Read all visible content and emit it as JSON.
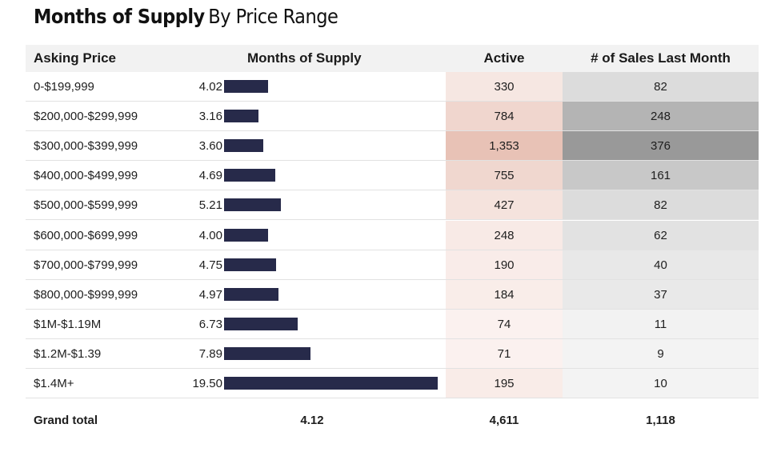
{
  "title": {
    "bold": "Months of Supply",
    "light": "By Price Range"
  },
  "headers": {
    "price": "Asking Price",
    "mos": "Months of Supply",
    "active": "Active",
    "sales": "# of Sales Last Month"
  },
  "colors": {
    "bar": "#272a4a",
    "active_heat_low": "#fcf5f3",
    "active_heat_high": "#e8c2b6",
    "sales_heat_low": "#f8f8f8",
    "sales_heat_high": "#999999"
  },
  "chart_data": {
    "type": "table",
    "columns": [
      "Asking Price",
      "Months of Supply",
      "Active",
      "# of Sales Last Month"
    ],
    "rows": [
      {
        "price": "0-$199,999",
        "mos": 4.02,
        "mos_label": "4.02",
        "active": 330,
        "active_label": "330",
        "sales": 82,
        "sales_label": "82"
      },
      {
        "price": "$200,000-$299,999",
        "mos": 3.16,
        "mos_label": "3.16",
        "active": 784,
        "active_label": "784",
        "sales": 248,
        "sales_label": "248"
      },
      {
        "price": "$300,000-$399,999",
        "mos": 3.6,
        "mos_label": "3.60",
        "active": 1353,
        "active_label": "1,353",
        "sales": 376,
        "sales_label": "376"
      },
      {
        "price": "$400,000-$499,999",
        "mos": 4.69,
        "mos_label": "4.69",
        "active": 755,
        "active_label": "755",
        "sales": 161,
        "sales_label": "161"
      },
      {
        "price": "$500,000-$599,999",
        "mos": 5.21,
        "mos_label": "5.21",
        "active": 427,
        "active_label": "427",
        "sales": 82,
        "sales_label": "82"
      },
      {
        "price": "$600,000-$699,999",
        "mos": 4.0,
        "mos_label": "4.00",
        "active": 248,
        "active_label": "248",
        "sales": 62,
        "sales_label": "62"
      },
      {
        "price": "$700,000-$799,999",
        "mos": 4.75,
        "mos_label": "4.75",
        "active": 190,
        "active_label": "190",
        "sales": 40,
        "sales_label": "40"
      },
      {
        "price": "$800,000-$999,999",
        "mos": 4.97,
        "mos_label": "4.97",
        "active": 184,
        "active_label": "184",
        "sales": 37,
        "sales_label": "37"
      },
      {
        "price": "$1M-$1.19M",
        "mos": 6.73,
        "mos_label": "6.73",
        "active": 74,
        "active_label": "74",
        "sales": 11,
        "sales_label": "11"
      },
      {
        "price": "$1.2M-$1.39",
        "mos": 7.89,
        "mos_label": "7.89",
        "active": 71,
        "active_label": "71",
        "sales": 9,
        "sales_label": "9"
      },
      {
        "price": "$1.4M+",
        "mos": 19.5,
        "mos_label": "19.50",
        "active": 195,
        "active_label": "195",
        "sales": 10,
        "sales_label": "10"
      }
    ],
    "grand_total": {
      "label": "Grand total",
      "mos": "4.12",
      "active": "4,611",
      "sales": "1,118"
    }
  }
}
